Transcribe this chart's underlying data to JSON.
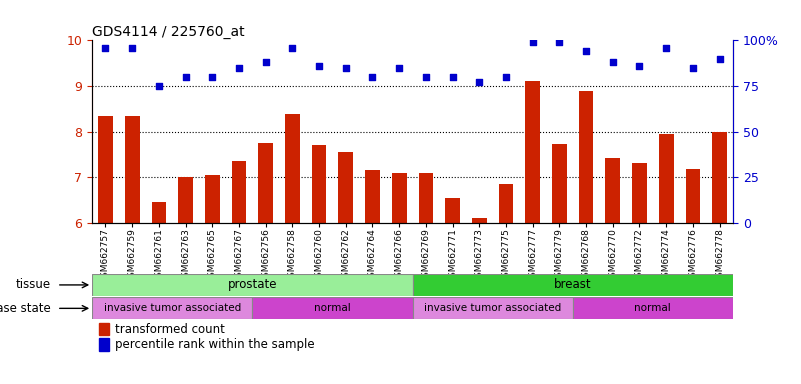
{
  "title": "GDS4114 / 225760_at",
  "samples": [
    "GSM662757",
    "GSM662759",
    "GSM662761",
    "GSM662763",
    "GSM662765",
    "GSM662767",
    "GSM662756",
    "GSM662758",
    "GSM662760",
    "GSM662762",
    "GSM662764",
    "GSM662766",
    "GSM662769",
    "GSM662771",
    "GSM662773",
    "GSM662775",
    "GSM662777",
    "GSM662779",
    "GSM662768",
    "GSM662770",
    "GSM662772",
    "GSM662774",
    "GSM662776",
    "GSM662778"
  ],
  "bar_values": [
    8.35,
    8.35,
    6.45,
    7.0,
    7.05,
    7.35,
    7.75,
    8.38,
    7.7,
    7.55,
    7.15,
    7.08,
    7.08,
    6.55,
    6.1,
    6.85,
    9.1,
    7.72,
    8.88,
    7.42,
    7.3,
    7.95,
    7.18,
    8.0
  ],
  "dot_values_pct": [
    96,
    96,
    75,
    80,
    80,
    85,
    88,
    96,
    86,
    85,
    80,
    85,
    80,
    80,
    77,
    80,
    99,
    99,
    94,
    88,
    86,
    96,
    85,
    90
  ],
  "ylim_left": [
    6,
    10
  ],
  "ylim_right": [
    0,
    100
  ],
  "yticks_left": [
    6,
    7,
    8,
    9,
    10
  ],
  "yticks_right": [
    0,
    25,
    50,
    75,
    100
  ],
  "bar_color": "#cc2200",
  "dot_color": "#0000cc",
  "bar_bottom": 6,
  "tissue_groups": [
    {
      "label": "prostate",
      "start": 0,
      "end": 12,
      "color": "#99ee99"
    },
    {
      "label": "breast",
      "start": 12,
      "end": 24,
      "color": "#33cc33"
    }
  ],
  "disease_groups": [
    {
      "label": "invasive tumor associated",
      "start": 0,
      "end": 6,
      "color": "#dd88dd"
    },
    {
      "label": "normal",
      "start": 6,
      "end": 12,
      "color": "#cc44cc"
    },
    {
      "label": "invasive tumor associated",
      "start": 12,
      "end": 18,
      "color": "#dd88dd"
    },
    {
      "label": "normal",
      "start": 18,
      "end": 24,
      "color": "#cc44cc"
    }
  ],
  "legend_bar": "transformed count",
  "legend_dot": "percentile rank within the sample"
}
